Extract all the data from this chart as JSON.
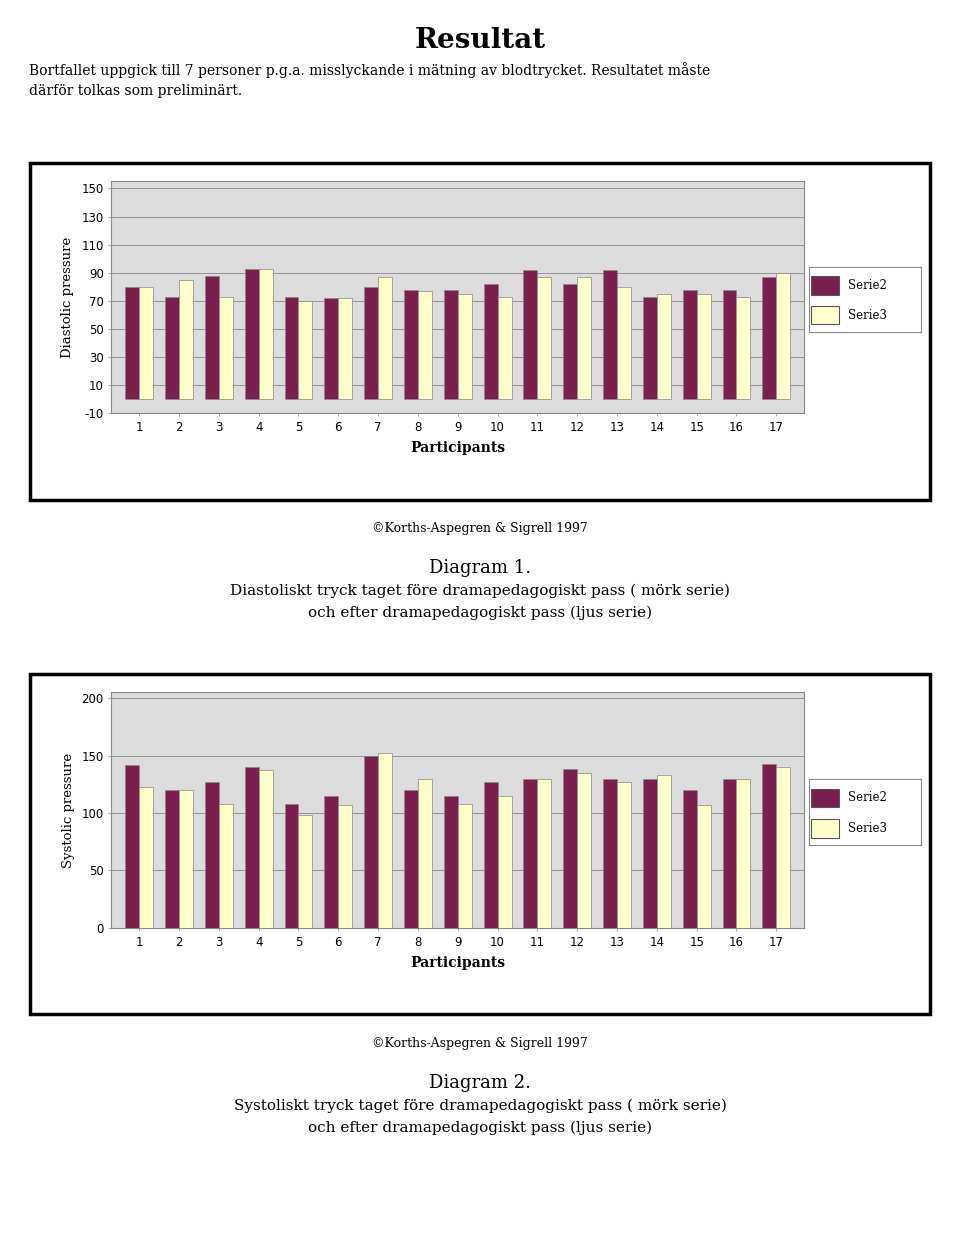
{
  "title": "Resultat",
  "intro_text": "Bortfallet uppgick till 7 personer p.g.a. misslyckande i mätning av blodtrycket. Resultatet måste\ndärför tolkas som preliminärt.",
  "chart1": {
    "ylabel": "Diastolic pressure",
    "xlabel": "Participants",
    "yticks": [
      -10,
      10,
      30,
      50,
      70,
      90,
      110,
      130,
      150
    ],
    "ylim": [
      -10,
      155
    ],
    "serie2": [
      80,
      73,
      88,
      93,
      73,
      72,
      80,
      78,
      78,
      82,
      92,
      82,
      92,
      73,
      78,
      78,
      87
    ],
    "serie3": [
      80,
      85,
      73,
      93,
      70,
      72,
      87,
      77,
      75,
      73,
      87,
      87,
      80,
      75,
      75,
      73,
      90
    ],
    "participants": [
      1,
      2,
      3,
      4,
      5,
      6,
      7,
      8,
      9,
      10,
      11,
      12,
      13,
      14,
      15,
      16,
      17
    ]
  },
  "chart1_caption": "©Korths-Aspegren & Sigrell 1997",
  "chart1_title": "Diagram 1.",
  "chart1_subtitle": "Diastoliskt tryck taget före dramapedagogiskt pass ( mörk serie)\noch efter dramapedagogiskt pass (ljus serie)",
  "chart2": {
    "ylabel": "Systolic pressure",
    "xlabel": "Participants",
    "yticks": [
      0,
      50,
      100,
      150,
      200
    ],
    "ylim": [
      0,
      205
    ],
    "serie2": [
      142,
      120,
      127,
      140,
      108,
      115,
      150,
      120,
      115,
      127,
      130,
      138,
      130,
      130,
      120,
      130,
      143
    ],
    "serie3": [
      123,
      120,
      108,
      137,
      98,
      107,
      152,
      130,
      108,
      115,
      130,
      135,
      127,
      133,
      107,
      130,
      140
    ],
    "participants": [
      1,
      2,
      3,
      4,
      5,
      6,
      7,
      8,
      9,
      10,
      11,
      12,
      13,
      14,
      15,
      16,
      17
    ]
  },
  "chart2_caption": "©Korths-Aspegren & Sigrell 1997",
  "chart2_title": "Diagram 2.",
  "chart2_subtitle": "Systoliskt tryck taget före dramapedagogiskt pass ( mörk serie)\noch efter dramapedagogiskt pass (ljus serie)",
  "serie2_color": "#7B1F4E",
  "serie3_color": "#FFFFCC",
  "serie2_label": "Serie2",
  "serie3_label": "Serie3",
  "bar_edge_color": "#888888",
  "chart_bg_color": "#DCDCDC",
  "page_bg_color": "#FFFFFF"
}
